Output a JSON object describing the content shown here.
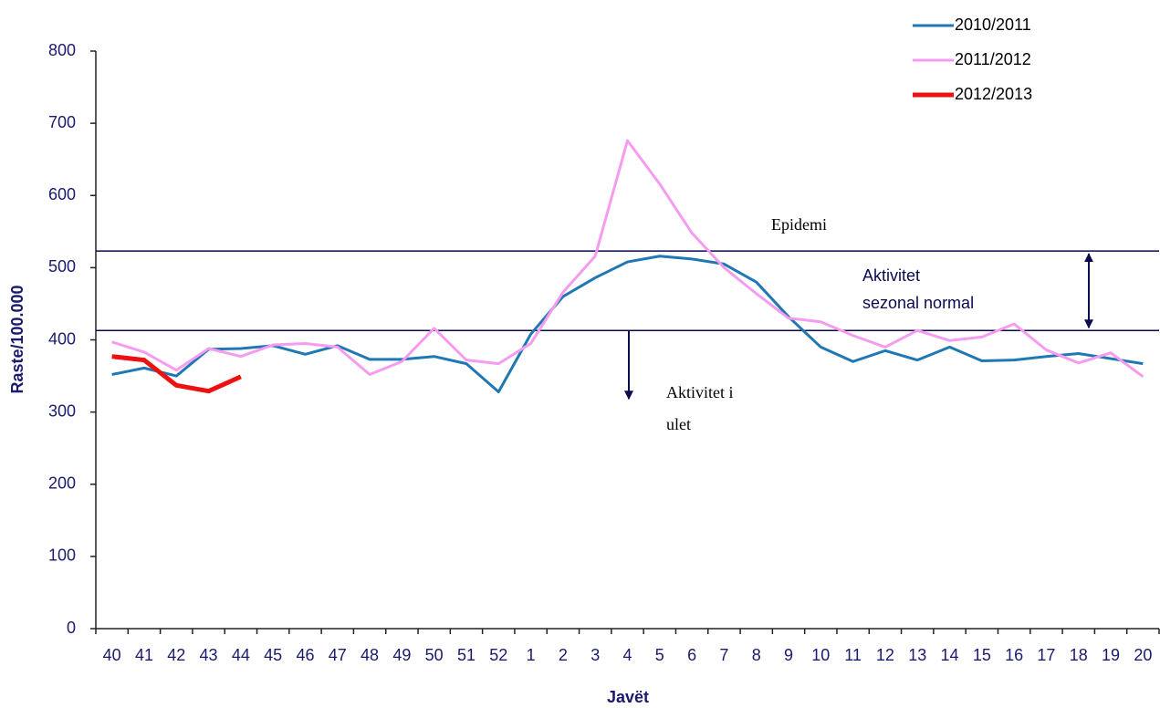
{
  "chart_data": {
    "type": "line",
    "y_label": "Raste/100.000",
    "x_label": "Javët",
    "categories": [
      "40",
      "41",
      "42",
      "43",
      "44",
      "45",
      "46",
      "47",
      "48",
      "49",
      "50",
      "51",
      "52",
      "1",
      "2",
      "3",
      "4",
      "5",
      "6",
      "7",
      "8",
      "9",
      "10",
      "11",
      "12",
      "13",
      "14",
      "15",
      "16",
      "17",
      "18",
      "19",
      "20"
    ],
    "series": [
      {
        "name": "2010/2011",
        "color": "#1f77b4",
        "width": 3,
        "values": [
          352,
          361,
          350,
          387,
          388,
          392,
          380,
          392,
          373,
          373,
          377,
          367,
          328,
          408,
          460,
          486,
          508,
          516,
          512,
          505,
          480,
          432,
          390,
          370,
          385,
          372,
          390,
          371,
          372,
          377,
          381,
          374,
          367
        ]
      },
      {
        "name": "2011/2012",
        "color": "#f59cf0",
        "width": 3,
        "values": [
          397,
          383,
          358,
          388,
          377,
          393,
          395,
          390,
          352,
          370,
          416,
          372,
          367,
          395,
          466,
          516,
          676,
          616,
          548,
          500,
          464,
          430,
          425,
          406,
          390,
          413,
          399,
          404,
          422,
          386,
          368,
          382,
          349
        ]
      },
      {
        "name": "2012/2013",
        "color": "#ee1111",
        "width": 5,
        "values": [
          377,
          372,
          337,
          329,
          349,
          null,
          null,
          null,
          null,
          null,
          null,
          null,
          null,
          null,
          null,
          null,
          null,
          null,
          null,
          null,
          null,
          null,
          null,
          null,
          null,
          null,
          null,
          null,
          null,
          null,
          null,
          null,
          null
        ]
      }
    ],
    "ylim": [
      0,
      800
    ],
    "yticks": [
      0,
      100,
      200,
      300,
      400,
      500,
      600,
      700,
      800
    ],
    "reference_lines": [
      523,
      413
    ],
    "annotations": [
      "Epidemi",
      "Aktivitet",
      "sezonal normal",
      "Aktivitet i",
      "ulet"
    ],
    "legend": "top-right"
  }
}
